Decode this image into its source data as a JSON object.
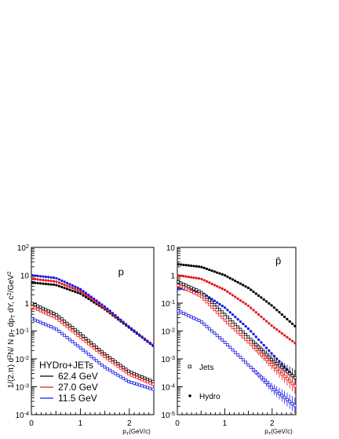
{
  "chart_data": {
    "type": "scatter",
    "ylabel": "1/(2.π) d²N/ N p_T dp_T dY, c²/GeV²",
    "y_scale": "log",
    "legend": {
      "title": "HYDro+JETs",
      "entries": [
        {
          "label": "62.4 GeV",
          "color": "#000000"
        },
        {
          "label": "27.0 GeV",
          "color": "#e8191b"
        },
        {
          "label": "11.5 GeV",
          "color": "#1a1ae6"
        }
      ],
      "markers": [
        {
          "label": "Jets",
          "style": "open"
        },
        {
          "label": "Hydro",
          "style": "filled"
        }
      ]
    },
    "panels": [
      {
        "label": "p",
        "xlabel": "p_T (GeV/c)",
        "xlim": [
          0,
          2.5
        ],
        "ylim": [
          0.0001,
          100
        ],
        "x_ticks": [
          0,
          1,
          2
        ],
        "y_tick_exps": [
          -4,
          -3,
          -2,
          -1,
          0,
          1,
          2
        ],
        "series": [
          {
            "energy": "62.4 GeV",
            "kind": "Hydro",
            "color": "#000000",
            "x": [
              0,
              0.5,
              1.0,
              1.5,
              2.0,
              2.5
            ],
            "y": [
              5.5,
              4.5,
              2.2,
              0.6,
              0.13,
              0.028
            ]
          },
          {
            "energy": "27.0 GeV",
            "kind": "Hydro",
            "color": "#e8191b",
            "x": [
              0,
              0.5,
              1.0,
              1.5,
              2.0,
              2.5
            ],
            "y": [
              7.5,
              6.0,
              2.7,
              0.65,
              0.14,
              0.03
            ]
          },
          {
            "energy": "11.5 GeV",
            "kind": "Hydro",
            "color": "#1a1ae6",
            "x": [
              0,
              0.5,
              1.0,
              1.5,
              2.0,
              2.5
            ],
            "y": [
              10,
              8.0,
              3.2,
              0.75,
              0.14,
              0.028
            ]
          },
          {
            "energy": "62.4 GeV",
            "kind": "Jets",
            "color": "#000000",
            "x": [
              0,
              0.5,
              1.0,
              1.5,
              2.0,
              2.5
            ],
            "y": [
              1.0,
              0.4,
              0.08,
              0.015,
              0.0035,
              0.0015
            ]
          },
          {
            "energy": "27.0 GeV",
            "kind": "Jets",
            "color": "#e8191b",
            "x": [
              0,
              0.5,
              1.0,
              1.5,
              2.0,
              2.5
            ],
            "y": [
              0.75,
              0.3,
              0.06,
              0.012,
              0.0028,
              0.0012
            ]
          },
          {
            "energy": "11.5 GeV",
            "kind": "Jets",
            "color": "#1a1ae6",
            "x": [
              0,
              0.5,
              1.0,
              1.5,
              2.0,
              2.5
            ],
            "y": [
              0.28,
              0.12,
              0.025,
              0.005,
              0.0015,
              0.0008
            ]
          }
        ]
      },
      {
        "label": "p̄",
        "xlabel": "p_T (GeV/c)",
        "xlim": [
          0,
          2.5
        ],
        "ylim": [
          1e-05,
          10
        ],
        "x_ticks": [
          0,
          1,
          2
        ],
        "y_tick_exps": [
          -5,
          -4,
          -3,
          -2,
          -1,
          0,
          1
        ],
        "series": [
          {
            "energy": "62.4 GeV",
            "kind": "Hydro",
            "color": "#000000",
            "x": [
              0,
              0.5,
              1.0,
              1.5,
              2.0,
              2.5
            ],
            "y": [
              2.5,
              2.0,
              1.0,
              0.35,
              0.08,
              0.014
            ]
          },
          {
            "energy": "27.0 GeV",
            "kind": "Hydro",
            "color": "#e8191b",
            "x": [
              0,
              0.5,
              1.0,
              1.5,
              2.0,
              2.5
            ],
            "y": [
              1.0,
              0.75,
              0.3,
              0.08,
              0.015,
              0.0035
            ]
          },
          {
            "energy": "11.5 GeV",
            "kind": "Hydro",
            "color": "#1a1ae6",
            "x": [
              0,
              0.5,
              1.0,
              1.5,
              2.0,
              2.5
            ],
            "y": [
              0.35,
              0.25,
              0.07,
              0.012,
              0.0015,
              0.0002
            ]
          },
          {
            "energy": "62.4 GeV",
            "kind": "Jets",
            "color": "#000000",
            "x": [
              0,
              0.5,
              1.0,
              1.5,
              2.0,
              2.5
            ],
            "y": [
              0.6,
              0.25,
              0.04,
              0.006,
              0.0009,
              0.0002
            ]
          },
          {
            "energy": "27.0 GeV",
            "kind": "Jets",
            "color": "#e8191b",
            "x": [
              0,
              0.5,
              1.0,
              1.5,
              2.0,
              2.5
            ],
            "y": [
              0.45,
              0.18,
              0.025,
              0.004,
              0.0006,
              0.0001
            ]
          },
          {
            "energy": "11.5 GeV",
            "kind": "Jets",
            "color": "#1a1ae6",
            "x": [
              0,
              0.5,
              1.0,
              1.5,
              2.0,
              2.5
            ],
            "y": [
              0.055,
              0.022,
              0.004,
              0.0006,
              9e-05,
              2e-05
            ]
          }
        ]
      }
    ]
  }
}
